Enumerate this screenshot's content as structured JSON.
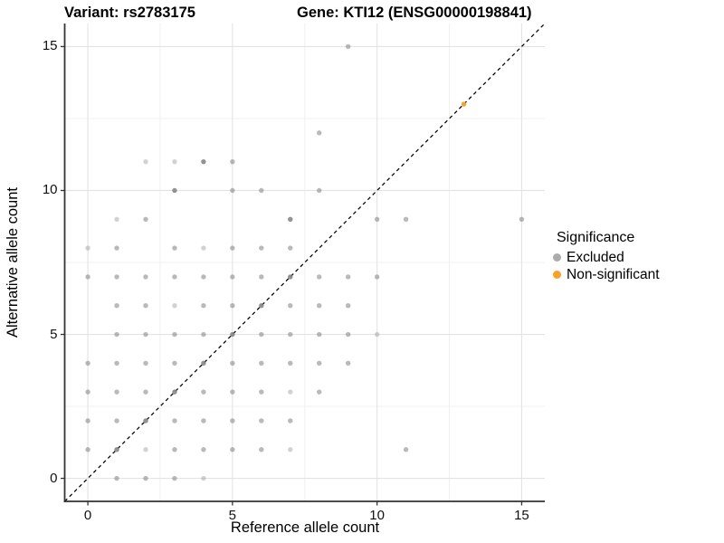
{
  "title": {
    "left": "Variant: rs2783175",
    "right": "Gene: KTI12 (ENSG00000198841)"
  },
  "legend": {
    "title": "Significance",
    "items": [
      {
        "label": "Excluded",
        "color": "#ABABAB"
      },
      {
        "label": "Non-significant",
        "color": "#F7A128"
      }
    ]
  },
  "colors": {
    "background": "#FFFFFF",
    "grid_major": "#E3E3E3",
    "grid_minor": "#F0F0F0",
    "axis_line": "#333333",
    "tick_text": "#111111",
    "excluded_point": "#7F7F7F",
    "non_significant_point": "#F7A128",
    "identity_line": "#000000"
  },
  "chart_data": {
    "type": "scatter",
    "title": "Variant: rs2783175 — Gene: KTI12 (ENSG00000198841)",
    "xlabel": "Reference allele count",
    "ylabel": "Alternative allele count",
    "xlim": [
      -0.8,
      15.8
    ],
    "ylim": [
      -0.8,
      15.8
    ],
    "x_ticks": [
      0,
      5,
      10,
      15
    ],
    "y_ticks": [
      0,
      5,
      10,
      15
    ],
    "x_minor_ticks": [
      2.5,
      7.5,
      12.5
    ],
    "y_minor_ticks": [
      2.5,
      7.5,
      12.5
    ],
    "grid": "on",
    "legend_position": "right",
    "identity_line": {
      "equation": "y = x",
      "style": "dashed",
      "color": "#000000"
    },
    "point_opacity": {
      "l": 0.35,
      "m": 0.55,
      "d": 0.85,
      "o": 1.0
    },
    "series": [
      {
        "name": "Excluded",
        "color": "#7F7F7F",
        "points": [
          [
            9,
            15,
            "m"
          ],
          [
            8,
            12,
            "m"
          ],
          [
            2,
            11,
            "l"
          ],
          [
            3,
            11,
            "l"
          ],
          [
            4,
            11,
            "d"
          ],
          [
            5,
            11,
            "m"
          ],
          [
            3,
            10,
            "d"
          ],
          [
            5,
            10,
            "m"
          ],
          [
            6,
            10,
            "m"
          ],
          [
            8,
            10,
            "m"
          ],
          [
            1,
            9,
            "l"
          ],
          [
            2,
            9,
            "m"
          ],
          [
            7,
            9,
            "d"
          ],
          [
            10,
            9,
            "m"
          ],
          [
            11,
            9,
            "m"
          ],
          [
            15,
            9,
            "m"
          ],
          [
            0,
            8,
            "l"
          ],
          [
            1,
            8,
            "m"
          ],
          [
            3,
            8,
            "m"
          ],
          [
            4,
            8,
            "l"
          ],
          [
            5,
            8,
            "m"
          ],
          [
            6,
            8,
            "m"
          ],
          [
            7,
            8,
            "m"
          ],
          [
            0,
            7,
            "m"
          ],
          [
            1,
            7,
            "m"
          ],
          [
            2,
            7,
            "m"
          ],
          [
            3,
            7,
            "m"
          ],
          [
            4,
            7,
            "m"
          ],
          [
            5,
            7,
            "m"
          ],
          [
            6,
            7,
            "m"
          ],
          [
            7,
            7,
            "d"
          ],
          [
            8,
            7,
            "m"
          ],
          [
            9,
            7,
            "m"
          ],
          [
            10,
            7,
            "m"
          ],
          [
            1,
            6,
            "m"
          ],
          [
            2,
            6,
            "m"
          ],
          [
            3,
            6,
            "l"
          ],
          [
            4,
            6,
            "m"
          ],
          [
            5,
            6,
            "m"
          ],
          [
            6,
            6,
            "d"
          ],
          [
            7,
            6,
            "m"
          ],
          [
            8,
            6,
            "m"
          ],
          [
            9,
            6,
            "m"
          ],
          [
            1,
            5,
            "m"
          ],
          [
            2,
            5,
            "m"
          ],
          [
            3,
            5,
            "m"
          ],
          [
            4,
            5,
            "m"
          ],
          [
            5,
            5,
            "d"
          ],
          [
            6,
            5,
            "m"
          ],
          [
            7,
            5,
            "m"
          ],
          [
            8,
            5,
            "m"
          ],
          [
            9,
            5,
            "m"
          ],
          [
            10,
            5,
            "l"
          ],
          [
            0,
            4,
            "m"
          ],
          [
            1,
            4,
            "m"
          ],
          [
            2,
            4,
            "m"
          ],
          [
            3,
            4,
            "m"
          ],
          [
            4,
            4,
            "d"
          ],
          [
            5,
            4,
            "m"
          ],
          [
            6,
            4,
            "m"
          ],
          [
            7,
            4,
            "m"
          ],
          [
            8,
            4,
            "m"
          ],
          [
            9,
            4,
            "m"
          ],
          [
            0,
            3,
            "m"
          ],
          [
            1,
            3,
            "m"
          ],
          [
            2,
            3,
            "m"
          ],
          [
            3,
            3,
            "d"
          ],
          [
            4,
            3,
            "m"
          ],
          [
            5,
            3,
            "m"
          ],
          [
            6,
            3,
            "m"
          ],
          [
            7,
            3,
            "l"
          ],
          [
            8,
            3,
            "m"
          ],
          [
            0,
            2,
            "m"
          ],
          [
            1,
            2,
            "m"
          ],
          [
            2,
            2,
            "d"
          ],
          [
            3,
            2,
            "m"
          ],
          [
            4,
            2,
            "m"
          ],
          [
            5,
            2,
            "m"
          ],
          [
            6,
            2,
            "m"
          ],
          [
            7,
            2,
            "m"
          ],
          [
            0,
            1,
            "m"
          ],
          [
            1,
            1,
            "d"
          ],
          [
            2,
            1,
            "l"
          ],
          [
            3,
            1,
            "m"
          ],
          [
            4,
            1,
            "m"
          ],
          [
            5,
            1,
            "m"
          ],
          [
            6,
            1,
            "m"
          ],
          [
            7,
            1,
            "l"
          ],
          [
            11,
            1,
            "m"
          ],
          [
            1,
            0,
            "m"
          ],
          [
            2,
            0,
            "m"
          ],
          [
            3,
            0,
            "m"
          ],
          [
            4,
            0,
            "l"
          ]
        ]
      },
      {
        "name": "Non-significant",
        "color": "#F7A128",
        "points": [
          [
            13,
            13,
            "o"
          ]
        ]
      }
    ]
  }
}
